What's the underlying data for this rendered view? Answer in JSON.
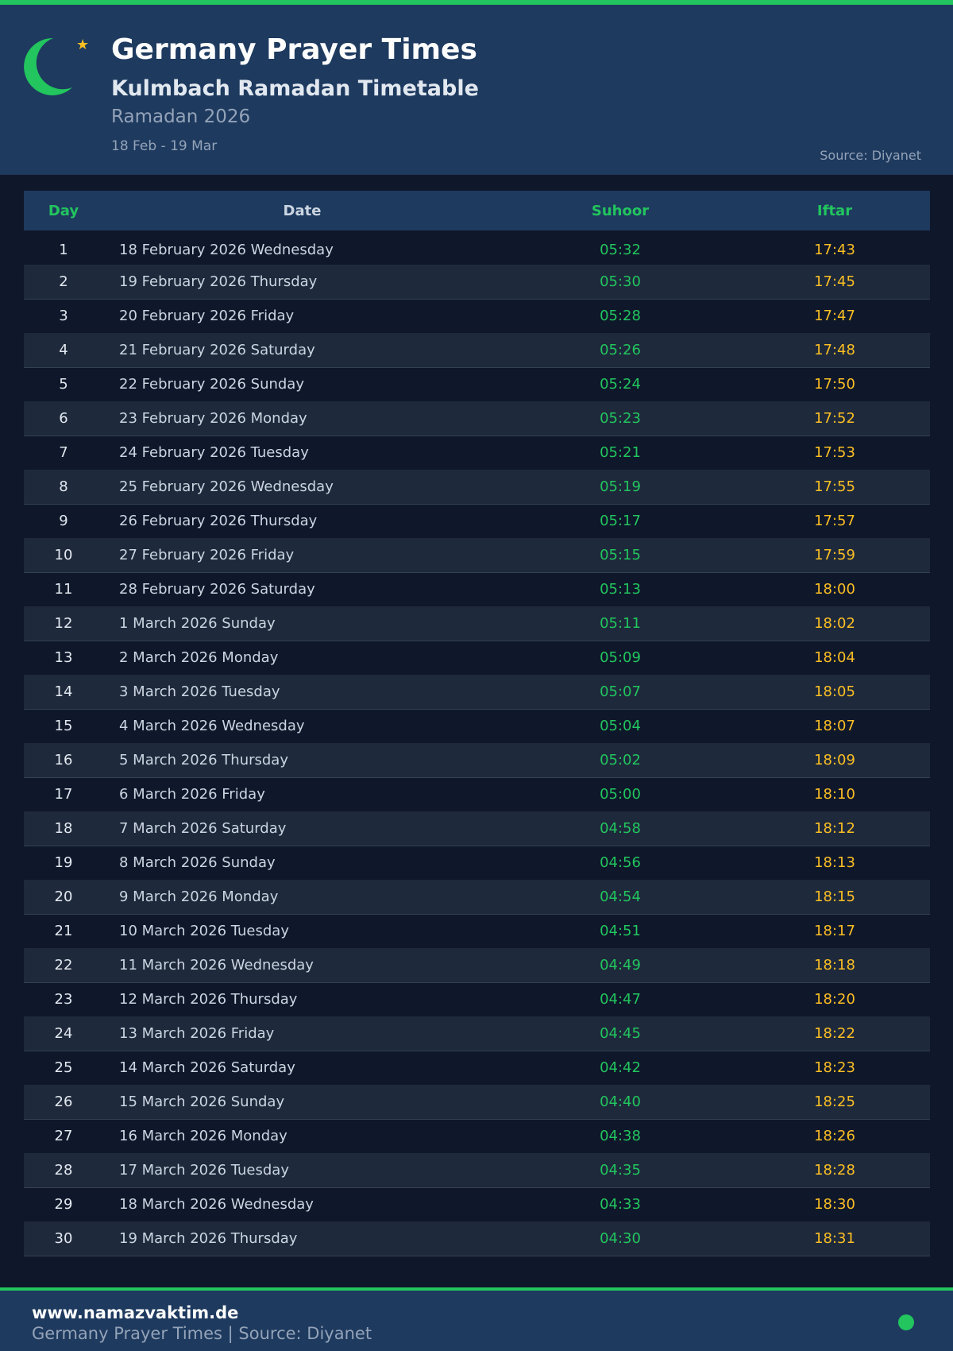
{
  "header": {
    "title": "Germany Prayer Times",
    "subtitle": "Kulmbach Ramadan Timetable",
    "period": "Ramadan 2026",
    "range": "18 Feb - 19 Mar",
    "source": "Source: Diyanet"
  },
  "colors": {
    "accent": "#22c55e",
    "iftar": "#fbbf24",
    "header_bg": "#1e3a5f",
    "page_bg": "#0f172a"
  },
  "table": {
    "columns": [
      "Day",
      "Date",
      "Suhoor",
      "Iftar"
    ],
    "rows": [
      [
        "1",
        "18 February 2026 Wednesday",
        "05:32",
        "17:43"
      ],
      [
        "2",
        "19 February 2026 Thursday",
        "05:30",
        "17:45"
      ],
      [
        "3",
        "20 February 2026 Friday",
        "05:28",
        "17:47"
      ],
      [
        "4",
        "21 February 2026 Saturday",
        "05:26",
        "17:48"
      ],
      [
        "5",
        "22 February 2026 Sunday",
        "05:24",
        "17:50"
      ],
      [
        "6",
        "23 February 2026 Monday",
        "05:23",
        "17:52"
      ],
      [
        "7",
        "24 February 2026 Tuesday",
        "05:21",
        "17:53"
      ],
      [
        "8",
        "25 February 2026 Wednesday",
        "05:19",
        "17:55"
      ],
      [
        "9",
        "26 February 2026 Thursday",
        "05:17",
        "17:57"
      ],
      [
        "10",
        "27 February 2026 Friday",
        "05:15",
        "17:59"
      ],
      [
        "11",
        "28 February 2026 Saturday",
        "05:13",
        "18:00"
      ],
      [
        "12",
        "1 March 2026 Sunday",
        "05:11",
        "18:02"
      ],
      [
        "13",
        "2 March 2026 Monday",
        "05:09",
        "18:04"
      ],
      [
        "14",
        "3 March 2026 Tuesday",
        "05:07",
        "18:05"
      ],
      [
        "15",
        "4 March 2026 Wednesday",
        "05:04",
        "18:07"
      ],
      [
        "16",
        "5 March 2026 Thursday",
        "05:02",
        "18:09"
      ],
      [
        "17",
        "6 March 2026 Friday",
        "05:00",
        "18:10"
      ],
      [
        "18",
        "7 March 2026 Saturday",
        "04:58",
        "18:12"
      ],
      [
        "19",
        "8 March 2026 Sunday",
        "04:56",
        "18:13"
      ],
      [
        "20",
        "9 March 2026 Monday",
        "04:54",
        "18:15"
      ],
      [
        "21",
        "10 March 2026 Tuesday",
        "04:51",
        "18:17"
      ],
      [
        "22",
        "11 March 2026 Wednesday",
        "04:49",
        "18:18"
      ],
      [
        "23",
        "12 March 2026 Thursday",
        "04:47",
        "18:20"
      ],
      [
        "24",
        "13 March 2026 Friday",
        "04:45",
        "18:22"
      ],
      [
        "25",
        "14 March 2026 Saturday",
        "04:42",
        "18:23"
      ],
      [
        "26",
        "15 March 2026 Sunday",
        "04:40",
        "18:25"
      ],
      [
        "27",
        "16 March 2026 Monday",
        "04:38",
        "18:26"
      ],
      [
        "28",
        "17 March 2026 Tuesday",
        "04:35",
        "18:28"
      ],
      [
        "29",
        "18 March 2026 Wednesday",
        "04:33",
        "18:30"
      ],
      [
        "30",
        "19 March 2026 Thursday",
        "04:30",
        "18:31"
      ]
    ]
  },
  "footer": {
    "site": "www.namazvaktim.de",
    "text": "Germany Prayer Times | Source: Diyanet"
  }
}
